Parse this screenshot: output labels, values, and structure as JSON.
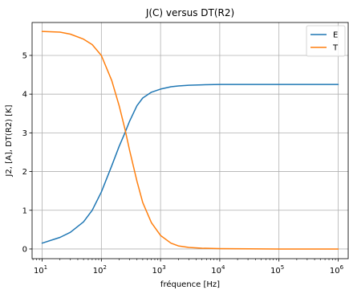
{
  "chart_data": {
    "type": "line",
    "title": "J(C) versus DT(R2)",
    "xlabel": "fréquence [Hz]",
    "ylabel": "J2, [A], DT(R2) [K]",
    "xscale": "log",
    "xlim": [
      10,
      1000000
    ],
    "ylim": [
      -0.25,
      5.85
    ],
    "grid": true,
    "legend_position": "top-right",
    "x_ticks": [
      {
        "value": 10,
        "base": "10",
        "exp": "1"
      },
      {
        "value": 100,
        "base": "10",
        "exp": "2"
      },
      {
        "value": 1000,
        "base": "10",
        "exp": "3"
      },
      {
        "value": 10000,
        "base": "10",
        "exp": "4"
      },
      {
        "value": 100000,
        "base": "10",
        "exp": "5"
      },
      {
        "value": 1000000,
        "base": "10",
        "exp": "6"
      }
    ],
    "y_ticks": [
      {
        "value": 0,
        "label": "0"
      },
      {
        "value": 1,
        "label": "1"
      },
      {
        "value": 2,
        "label": "2"
      },
      {
        "value": 3,
        "label": "3"
      },
      {
        "value": 4,
        "label": "4"
      },
      {
        "value": 5,
        "label": "5"
      }
    ],
    "series": [
      {
        "name": "E",
        "color": "#1f77b4",
        "x": [
          10,
          20,
          30,
          50,
          70,
          100,
          150,
          200,
          250,
          300,
          400,
          500,
          700,
          1000,
          1500,
          2000,
          3000,
          5000,
          10000,
          100000,
          1000000
        ],
        "y": [
          0.15,
          0.3,
          0.43,
          0.7,
          1.0,
          1.47,
          2.15,
          2.65,
          3.0,
          3.3,
          3.7,
          3.9,
          4.05,
          4.13,
          4.19,
          4.21,
          4.23,
          4.24,
          4.25,
          4.25,
          4.25
        ]
      },
      {
        "name": "T",
        "color": "#ff7f0e",
        "x": [
          10,
          20,
          30,
          50,
          70,
          100,
          150,
          200,
          250,
          300,
          400,
          500,
          700,
          1000,
          1500,
          2000,
          3000,
          5000,
          10000,
          100000,
          1000000
        ],
        "y": [
          5.62,
          5.6,
          5.55,
          5.42,
          5.28,
          5.0,
          4.35,
          3.7,
          3.1,
          2.55,
          1.75,
          1.2,
          0.68,
          0.35,
          0.15,
          0.08,
          0.04,
          0.02,
          0.01,
          0.0,
          0.0
        ]
      }
    ]
  }
}
